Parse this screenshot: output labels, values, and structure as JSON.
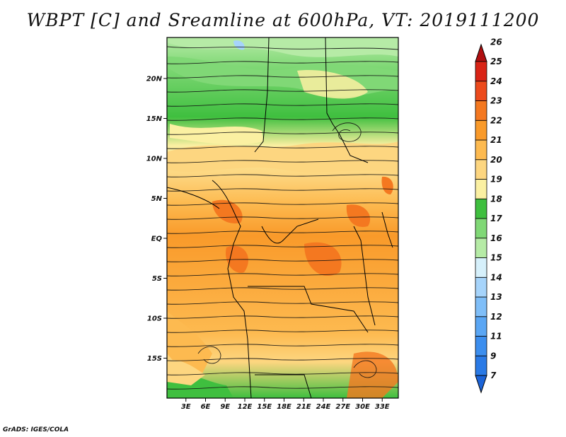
{
  "title": "WBPT [C] and Sreamline at 600hPa, VT: 2019111200",
  "credit": "GrADS: IGES/COLA",
  "map": {
    "lat_ticks": [
      {
        "value": 20,
        "label": "20N"
      },
      {
        "value": 15,
        "label": "15N"
      },
      {
        "value": 10,
        "label": "10N"
      },
      {
        "value": 5,
        "label": "5N"
      },
      {
        "value": 0,
        "label": "EQ"
      },
      {
        "value": -5,
        "label": "5S"
      },
      {
        "value": -10,
        "label": "10S"
      },
      {
        "value": -15,
        "label": "15S"
      }
    ],
    "lon_ticks": [
      {
        "value": 3,
        "label": "3E"
      },
      {
        "value": 6,
        "label": "6E"
      },
      {
        "value": 9,
        "label": "9E"
      },
      {
        "value": 12,
        "label": "12E"
      },
      {
        "value": 15,
        "label": "15E"
      },
      {
        "value": 18,
        "label": "18E"
      },
      {
        "value": 21,
        "label": "21E"
      },
      {
        "value": 24,
        "label": "24E"
      },
      {
        "value": 27,
        "label": "27E"
      },
      {
        "value": 30,
        "label": "30E"
      },
      {
        "value": 33,
        "label": "33E"
      }
    ]
  },
  "colorbar": {
    "levels": [
      "7",
      "9",
      "11",
      "12",
      "13",
      "14",
      "15",
      "16",
      "17",
      "18",
      "19",
      "20",
      "21",
      "22",
      "23",
      "24",
      "25",
      "26"
    ],
    "colors": [
      "#1c64d8",
      "#2a7ae6",
      "#3c8eee",
      "#5aa6f4",
      "#7fbef8",
      "#a6d4fb",
      "#d6f0fb",
      "#b6eba6",
      "#80d876",
      "#3fbf3f",
      "#fbf0a2",
      "#fdd680",
      "#fdba50",
      "#f99a2a",
      "#f47820",
      "#ec4a1c",
      "#d92416",
      "#b00f10"
    ]
  }
}
